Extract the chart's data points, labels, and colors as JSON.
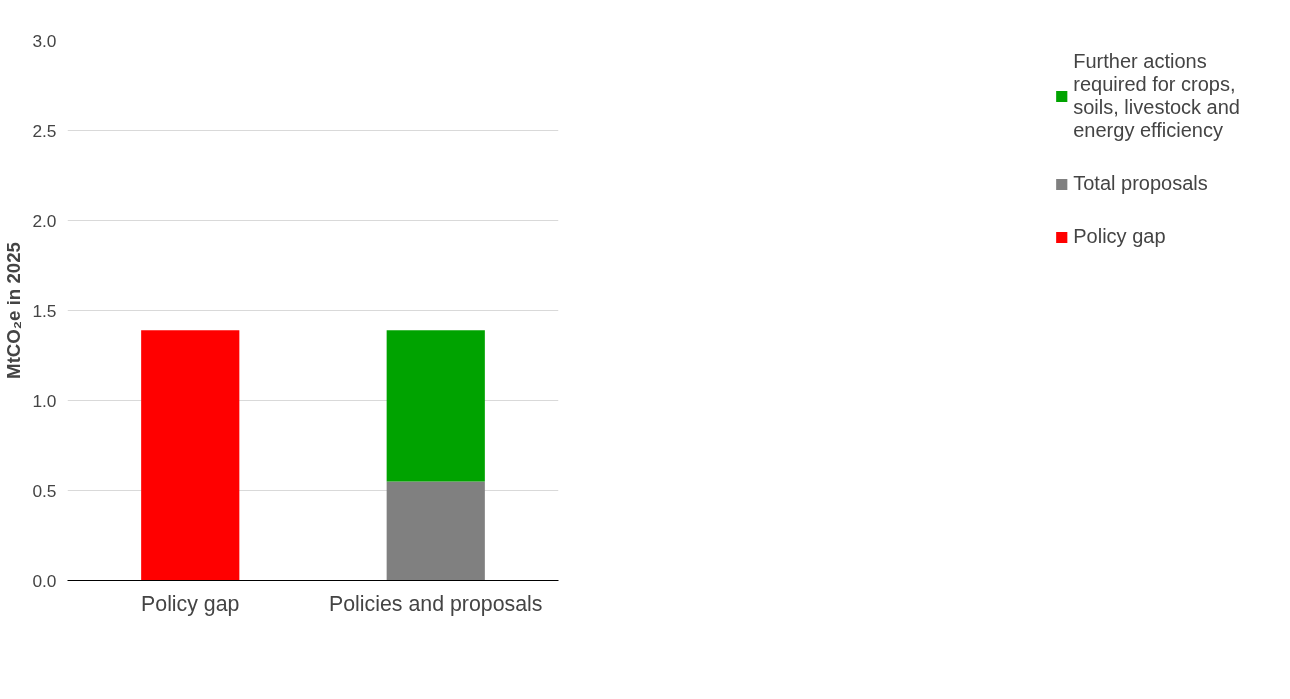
{
  "chart_data": {
    "type": "bar",
    "stacked": true,
    "categories": [
      "Policy gap",
      "Policies and proposals"
    ],
    "ylabel": "MtCO₂e in 2025",
    "ylim": [
      0,
      3.0
    ],
    "yticks": [
      {
        "value": 0,
        "label": "0.0"
      },
      {
        "value": 0.5,
        "label": "0.5"
      },
      {
        "value": 1.0,
        "label": "1.0"
      },
      {
        "value": 1.5,
        "label": "1.5"
      },
      {
        "value": 2.0,
        "label": "2.0"
      },
      {
        "value": 2.5,
        "label": "2.5"
      },
      {
        "value": 3.0,
        "label": "3.0"
      }
    ],
    "grid": "y",
    "legend": "right",
    "series": [
      {
        "name": "Policy gap",
        "color": "#ff0000",
        "values": [
          1.39,
          null
        ]
      },
      {
        "name": "Total proposals",
        "color": "#808080",
        "values": [
          null,
          0.55
        ]
      },
      {
        "name": "Further actions required for crops, soils, livestock and energy efficiency",
        "color": "#00a300",
        "values": [
          null,
          0.84
        ]
      }
    ]
  }
}
